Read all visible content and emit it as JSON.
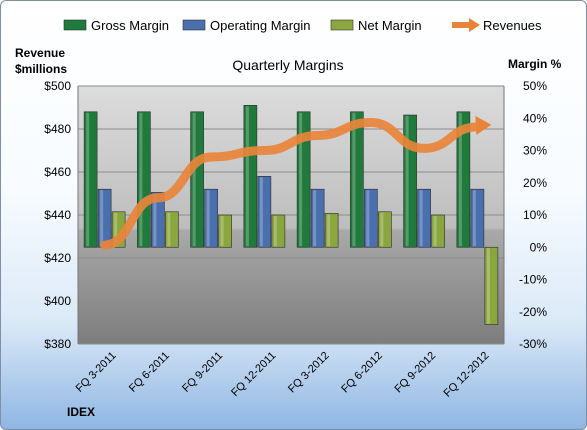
{
  "chart_data": {
    "type": "bar",
    "title": "Quarterly Margins",
    "ticker": "IDEX",
    "left_axis": {
      "label_line1": "Revenue",
      "label_line2": "$millions",
      "range": [
        380,
        500
      ],
      "ticks": [
        "$380",
        "$400",
        "$420",
        "$440",
        "$460",
        "$480",
        "$500"
      ]
    },
    "right_axis": {
      "label": "Margin %",
      "range": [
        -30,
        50
      ],
      "ticks": [
        "-30%",
        "-20%",
        "-10%",
        "0%",
        "10%",
        "20%",
        "30%",
        "40%",
        "50%"
      ]
    },
    "categories": [
      "FQ 3-2011",
      "FQ 6-2011",
      "FQ 9-2011",
      "FQ 12-2011",
      "FQ 3-2012",
      "FQ 6-2012",
      "FQ 9-2012",
      "FQ 12-2012"
    ],
    "series": [
      {
        "name": "Gross Margin",
        "axis": "right",
        "type": "bar",
        "color": "#1f7a3c",
        "values": [
          42,
          42,
          42,
          44,
          42,
          42,
          41,
          42
        ]
      },
      {
        "name": "Operating Margin",
        "axis": "right",
        "type": "bar",
        "color": "#4a6fae",
        "values": [
          18,
          17,
          18,
          22,
          18,
          18,
          18,
          18
        ]
      },
      {
        "name": "Net Margin",
        "axis": "right",
        "type": "bar",
        "color": "#8aa63e",
        "values": [
          11,
          11,
          10,
          10,
          10.5,
          11,
          10,
          -24
        ]
      },
      {
        "name": "Revenues",
        "axis": "left",
        "type": "line",
        "color": "#e8843a",
        "values": [
          426,
          448,
          467,
          470,
          477,
          483,
          471,
          481
        ]
      }
    ],
    "legend_position": "top",
    "grid": true
  }
}
